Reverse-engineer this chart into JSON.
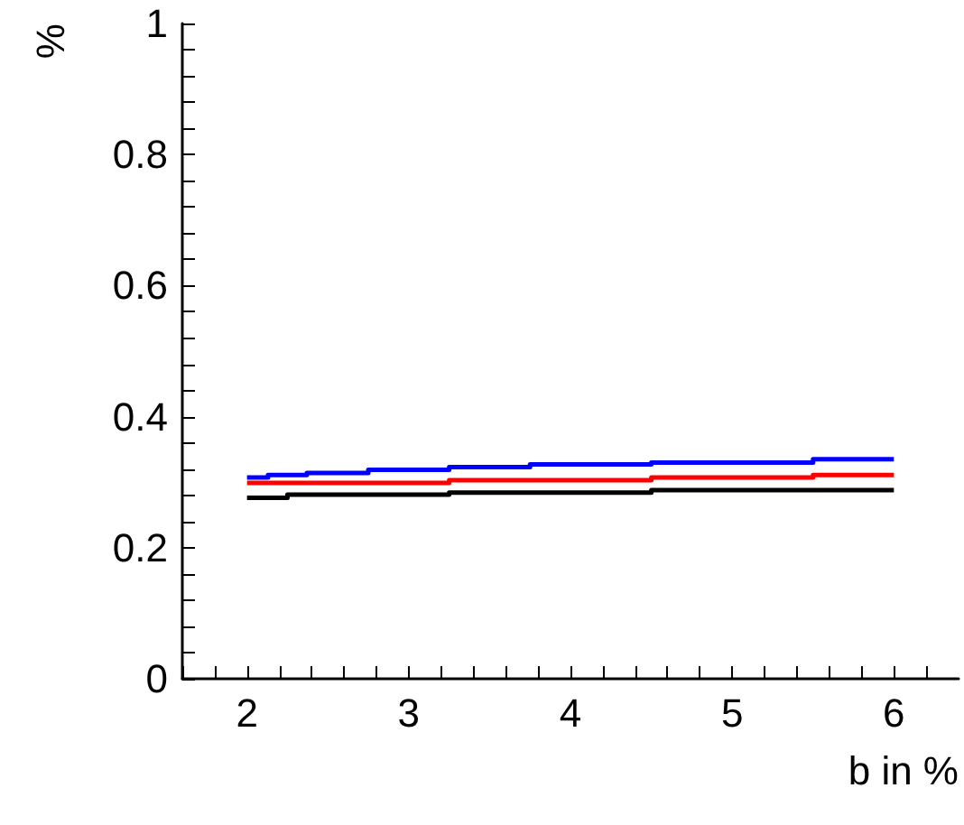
{
  "chart_data": {
    "type": "step",
    "xlabel": "b in %",
    "ylabel": "%",
    "series": [
      {
        "color": "#0000ff",
        "x": [
          2,
          2.13,
          2.37,
          2.75,
          3.25,
          3.75,
          4.5,
          5.5,
          6
        ],
        "values": [
          0.307,
          0.311,
          0.314,
          0.319,
          0.323,
          0.327,
          0.33,
          0.335,
          0.335
        ]
      },
      {
        "color": "#ff0000",
        "x": [
          2,
          3.25,
          4.5,
          5.5,
          6
        ],
        "values": [
          0.299,
          0.303,
          0.307,
          0.311,
          0.311
        ]
      },
      {
        "color": "#000000",
        "x": [
          2,
          2.25,
          3.25,
          4.5,
          6
        ],
        "values": [
          0.276,
          0.281,
          0.284,
          0.288,
          0.288
        ]
      }
    ],
    "xlim": [
      1.6,
      6.4
    ],
    "xticks": [
      {
        "value": 1.6,
        "label": null
      },
      {
        "value": 1.8,
        "label": null
      },
      2,
      {
        "value": 2.2,
        "label": null
      },
      {
        "value": 2.4,
        "label": null
      },
      {
        "value": 2.6,
        "label": null
      },
      {
        "value": 2.8,
        "label": null
      },
      3,
      {
        "value": 3.2,
        "label": null
      },
      {
        "value": 3.4,
        "label": null
      },
      {
        "value": 3.6,
        "label": null
      },
      {
        "value": 3.8,
        "label": null
      },
      4,
      {
        "value": 4.2,
        "label": null
      },
      {
        "value": 4.4,
        "label": null
      },
      {
        "value": 4.6,
        "label": null
      },
      {
        "value": 4.8,
        "label": null
      },
      5,
      {
        "value": 5.2,
        "label": null
      },
      {
        "value": 5.4,
        "label": null
      },
      {
        "value": 5.6,
        "label": null
      },
      {
        "value": 5.8,
        "label": null
      },
      6,
      {
        "value": 6.2,
        "label": null
      }
    ],
    "ylim": [
      0,
      1
    ],
    "yticks": [
      0,
      {
        "value": 0.04,
        "label": null
      },
      {
        "value": 0.08,
        "label": null
      },
      {
        "value": 0.12,
        "label": null
      },
      {
        "value": 0.16,
        "label": null
      },
      0.2,
      {
        "value": 0.24,
        "label": null
      },
      {
        "value": 0.28,
        "label": null
      },
      {
        "value": 0.32,
        "label": null
      },
      {
        "value": 0.36,
        "label": null
      },
      0.4,
      {
        "value": 0.44,
        "label": null
      },
      {
        "value": 0.48,
        "label": null
      },
      {
        "value": 0.52,
        "label": null
      },
      {
        "value": 0.56,
        "label": null
      },
      0.6,
      {
        "value": 0.64,
        "label": null
      },
      {
        "value": 0.68,
        "label": null
      },
      {
        "value": 0.72,
        "label": null
      },
      {
        "value": 0.76,
        "label": null
      },
      0.8,
      {
        "value": 0.84,
        "label": null
      },
      {
        "value": 0.88,
        "label": null
      },
      {
        "value": 0.92,
        "label": null
      },
      {
        "value": 0.96,
        "label": null
      },
      1
    ],
    "grid": false,
    "marker": "none",
    "line_style": "solid"
  }
}
